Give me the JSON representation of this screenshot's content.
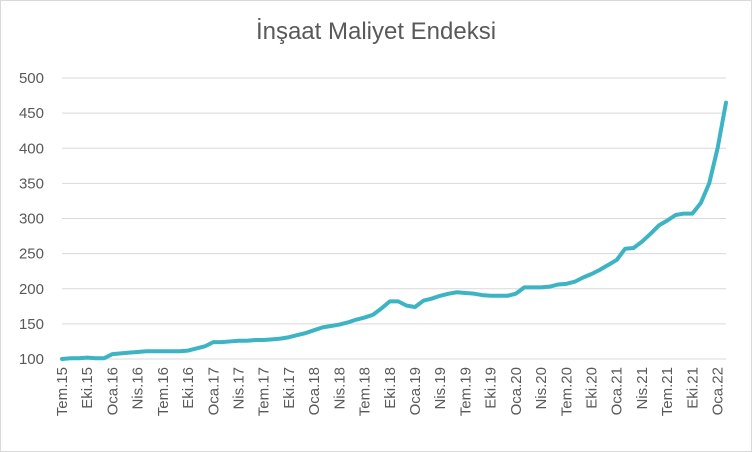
{
  "chart_data": {
    "type": "line",
    "title": "İnşaat Maliyet Endeksi",
    "xlabel": "",
    "ylabel": "",
    "ylim": [
      100,
      500
    ],
    "yticks": [
      100,
      150,
      200,
      250,
      300,
      350,
      400,
      450,
      500
    ],
    "grid": "horizontal",
    "legend": "none",
    "line_color": "#3CB4C3",
    "grid_color": "#d9d9d9",
    "axis_color": "#d9d9d9",
    "x_tick_labels": [
      {
        "index": 0,
        "label": "Tem.15"
      },
      {
        "index": 3,
        "label": "Eki.15"
      },
      {
        "index": 6,
        "label": "Oca.16"
      },
      {
        "index": 9,
        "label": "Nis.16"
      },
      {
        "index": 12,
        "label": "Tem.16"
      },
      {
        "index": 15,
        "label": "Eki.16"
      },
      {
        "index": 18,
        "label": "Oca.17"
      },
      {
        "index": 21,
        "label": "Nis.17"
      },
      {
        "index": 24,
        "label": "Tem.17"
      },
      {
        "index": 27,
        "label": "Eki.17"
      },
      {
        "index": 30,
        "label": "Oca.18"
      },
      {
        "index": 33,
        "label": "Nis.18"
      },
      {
        "index": 36,
        "label": "Tem.18"
      },
      {
        "index": 39,
        "label": "Eki.18"
      },
      {
        "index": 42,
        "label": "Oca.19"
      },
      {
        "index": 45,
        "label": "Nis.19"
      },
      {
        "index": 48,
        "label": "Tem.19"
      },
      {
        "index": 51,
        "label": "Eki.19"
      },
      {
        "index": 54,
        "label": "Oca.20"
      },
      {
        "index": 57,
        "label": "Nis.20"
      },
      {
        "index": 60,
        "label": "Tem.20"
      },
      {
        "index": 63,
        "label": "Eki.20"
      },
      {
        "index": 66,
        "label": "Oca.21"
      },
      {
        "index": 69,
        "label": "Nis.21"
      },
      {
        "index": 72,
        "label": "Tem.21"
      },
      {
        "index": 75,
        "label": "Eki.21"
      },
      {
        "index": 78,
        "label": "Oca.22"
      }
    ],
    "series": [
      {
        "values": [
          100,
          101,
          101,
          102,
          101,
          101,
          107,
          108,
          109,
          110,
          111,
          111,
          111,
          111,
          111,
          112,
          115,
          118,
          124,
          124,
          125,
          126,
          126,
          127,
          127,
          128,
          129,
          131,
          134,
          137,
          141,
          145,
          147,
          149,
          152,
          156,
          159,
          163,
          172,
          182,
          182,
          176,
          174,
          183,
          186,
          190,
          193,
          195,
          194,
          193,
          191,
          190,
          190,
          190,
          193,
          202,
          202,
          202,
          203,
          206,
          207,
          210,
          216,
          221,
          227,
          234,
          241,
          257,
          258,
          267,
          278,
          290,
          297,
          305,
          307,
          307,
          322,
          350,
          400,
          465
        ]
      }
    ]
  }
}
